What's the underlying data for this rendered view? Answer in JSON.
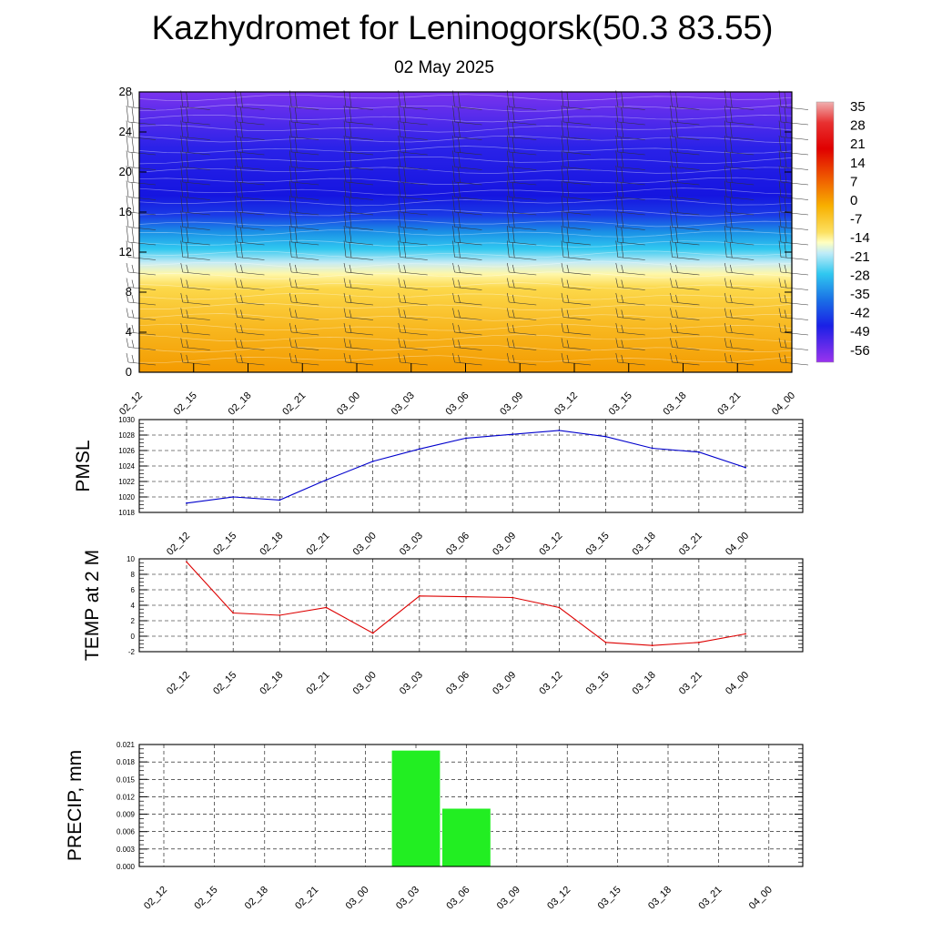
{
  "header": {
    "title": "Kazhydromet for Leninogorsk(50.3 83.55)",
    "subtitle": "02 May 2025"
  },
  "chart_data": [
    {
      "type": "heatmap",
      "name": "vertical-cross-section",
      "title": "",
      "x_ticks": [
        "02_12",
        "02_15",
        "02_18",
        "02_21",
        "03_00",
        "03_03",
        "03_06",
        "03_09",
        "03_12",
        "03_15",
        "03_18",
        "03_21",
        "04_00"
      ],
      "y_ticks": [
        0,
        4,
        8,
        12,
        16,
        20,
        24,
        28
      ],
      "ylim": [
        0,
        28
      ],
      "legend": {
        "position": "right",
        "labels": [
          "35",
          "28",
          "21",
          "14",
          "7",
          "0",
          "-7",
          "-14",
          "-21",
          "-28",
          "-35",
          "-42",
          "-49",
          "-56"
        ]
      },
      "colors": {
        "warm_low": "#f6a100",
        "warm_mid": "#fcd84a",
        "cold_mid": "#30c8f0",
        "cold_high": "#1a1ae6",
        "cold_top": "#8833ee"
      }
    },
    {
      "type": "line",
      "name": "pmsl",
      "ylabel": "PMSL",
      "categories": [
        "02_12",
        "02_15",
        "02_18",
        "02_21",
        "03_00",
        "03_03",
        "03_06",
        "03_09",
        "03_12",
        "03_15",
        "03_18",
        "03_21",
        "04_00"
      ],
      "values": [
        1019.2,
        1020.0,
        1019.6,
        1022.2,
        1024.6,
        1026.2,
        1027.6,
        1028.1,
        1028.6,
        1027.8,
        1026.3,
        1025.8,
        1023.8
      ],
      "y_ticks": [
        1018,
        1020,
        1022,
        1024,
        1026,
        1028,
        1030
      ],
      "ylim": [
        1018,
        1030
      ],
      "grid": true,
      "color": "#0000cc"
    },
    {
      "type": "line",
      "name": "temp-2m",
      "ylabel": "TEMP at 2 M",
      "categories": [
        "02_12",
        "02_15",
        "02_18",
        "02_21",
        "03_00",
        "03_03",
        "03_06",
        "03_09",
        "03_12",
        "03_15",
        "03_18",
        "03_21",
        "04_00"
      ],
      "values": [
        9.6,
        3.0,
        2.7,
        3.7,
        0.4,
        5.2,
        5.1,
        5.0,
        3.7,
        -0.8,
        -1.2,
        -0.8,
        0.3
      ],
      "y_ticks": [
        -2,
        0,
        2,
        4,
        6,
        8,
        10
      ],
      "ylim": [
        -2,
        10
      ],
      "grid": true,
      "color": "#dd0000"
    },
    {
      "type": "bar",
      "name": "precip",
      "ylabel": "PRECIP, mm",
      "categories": [
        "02_12",
        "02_15",
        "02_18",
        "02_21",
        "03_00",
        "03_03",
        "03_06",
        "03_09",
        "03_12",
        "03_15",
        "03_18",
        "03_21",
        "04_00"
      ],
      "values": [
        0,
        0,
        0,
        0,
        0,
        0.02,
        0.01,
        0,
        0,
        0,
        0,
        0,
        0
      ],
      "y_ticks": [
        "0.000",
        "0.003",
        "0.006",
        "0.009",
        "0.012",
        "0.015",
        "0.018",
        "0.021"
      ],
      "ylim": [
        0,
        0.021
      ],
      "grid": true,
      "color": "#22ee22"
    }
  ]
}
